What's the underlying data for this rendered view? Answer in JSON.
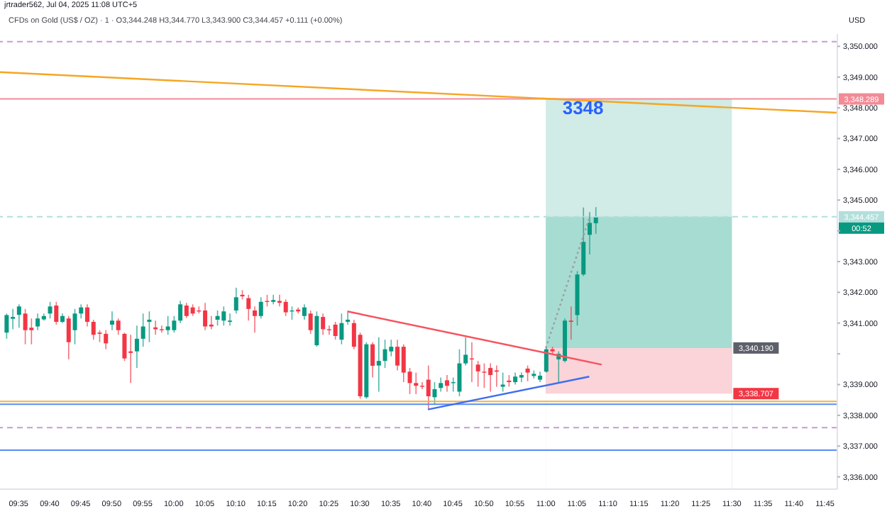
{
  "chart_data": {
    "type": "candlestick",
    "title": "jrtrader562, Jul 04, 2025 11:08 UTC+5",
    "subtitle": "CFDs on Gold (US$ / OZ) · 1 · O3,344.248 H3,344.770 L3,343.900 C3,344.457 +0.111 (+0.00%)",
    "ylabel": "USD",
    "x": [
      "2025-07-04T09:33",
      "2025-07-04T09:34",
      "2025-07-04T09:35",
      "2025-07-04T09:36",
      "2025-07-04T09:37",
      "2025-07-04T09:38",
      "2025-07-04T09:39",
      "2025-07-04T09:40",
      "2025-07-04T09:41",
      "2025-07-04T09:42",
      "2025-07-04T09:43",
      "2025-07-04T09:44",
      "2025-07-04T09:45",
      "2025-07-04T09:46",
      "2025-07-04T09:47",
      "2025-07-04T09:48",
      "2025-07-04T09:49",
      "2025-07-04T09:50",
      "2025-07-04T09:51",
      "2025-07-04T09:52",
      "2025-07-04T09:53",
      "2025-07-04T09:54",
      "2025-07-04T09:55",
      "2025-07-04T09:56",
      "2025-07-04T09:57",
      "2025-07-04T09:58",
      "2025-07-04T09:59",
      "2025-07-04T10:00",
      "2025-07-04T10:01",
      "2025-07-04T10:02",
      "2025-07-04T10:03",
      "2025-07-04T10:04",
      "2025-07-04T10:05",
      "2025-07-04T10:06",
      "2025-07-04T10:07",
      "2025-07-04T10:08",
      "2025-07-04T10:09",
      "2025-07-04T10:10",
      "2025-07-04T10:11",
      "2025-07-04T10:12",
      "2025-07-04T10:13",
      "2025-07-04T10:14",
      "2025-07-04T10:15",
      "2025-07-04T10:16",
      "2025-07-04T10:17",
      "2025-07-04T10:18",
      "2025-07-04T10:19",
      "2025-07-04T10:20",
      "2025-07-04T10:21",
      "2025-07-04T10:22",
      "2025-07-04T10:23",
      "2025-07-04T10:24",
      "2025-07-04T10:25",
      "2025-07-04T10:26",
      "2025-07-04T10:27",
      "2025-07-04T10:28",
      "2025-07-04T10:29",
      "2025-07-04T10:30",
      "2025-07-04T10:31",
      "2025-07-04T10:32",
      "2025-07-04T10:33",
      "2025-07-04T10:34",
      "2025-07-04T10:35",
      "2025-07-04T10:36",
      "2025-07-04T10:37",
      "2025-07-04T10:38",
      "2025-07-04T10:39",
      "2025-07-04T10:40",
      "2025-07-04T10:41",
      "2025-07-04T10:42",
      "2025-07-04T10:43",
      "2025-07-04T10:44",
      "2025-07-04T10:45",
      "2025-07-04T10:46",
      "2025-07-04T10:47",
      "2025-07-04T10:48",
      "2025-07-04T10:49",
      "2025-07-04T10:50",
      "2025-07-04T10:51",
      "2025-07-04T10:52",
      "2025-07-04T10:53",
      "2025-07-04T10:54",
      "2025-07-04T10:55",
      "2025-07-04T10:56",
      "2025-07-04T10:57",
      "2025-07-04T10:58",
      "2025-07-04T10:59",
      "2025-07-04T11:00",
      "2025-07-04T11:01",
      "2025-07-04T11:02",
      "2025-07-04T11:03",
      "2025-07-04T11:04",
      "2025-07-04T11:05",
      "2025-07-04T11:06",
      "2025-07-04T11:07",
      "2025-07-04T11:08"
    ],
    "ohlc": [
      [
        3340.69,
        3341.31,
        3340.49,
        3341.26
      ],
      [
        3341.14,
        3341.46,
        3340.8,
        3341.2
      ],
      [
        3341.27,
        3341.61,
        3340.85,
        3341.54
      ],
      [
        3341.31,
        3341.46,
        3340.31,
        3340.77
      ],
      [
        3340.85,
        3341.15,
        3340.31,
        3340.77
      ],
      [
        3340.89,
        3341.31,
        3340.77,
        3341.15
      ],
      [
        3341.12,
        3341.31,
        3341.08,
        3341.23
      ],
      [
        3341.31,
        3341.69,
        3341.15,
        3341.54
      ],
      [
        3341.57,
        3341.69,
        3340.95,
        3341.04
      ],
      [
        3341.04,
        3341.31,
        3341.0,
        3341.23
      ],
      [
        3341.15,
        3341.23,
        3339.82,
        3340.38
      ],
      [
        3340.77,
        3341.46,
        3340.31,
        3341.31
      ],
      [
        3341.31,
        3341.61,
        3341.15,
        3341.51
      ],
      [
        3341.51,
        3341.61,
        3340.89,
        3341.04
      ],
      [
        3341.04,
        3341.11,
        3340.46,
        3340.62
      ],
      [
        3340.69,
        3340.77,
        3340.38,
        3340.65
      ],
      [
        3340.65,
        3340.77,
        3340.15,
        3340.34
      ],
      [
        3340.95,
        3341.38,
        3340.77,
        3341.08
      ],
      [
        3341.08,
        3341.15,
        3340.62,
        3340.77
      ],
      [
        3340.65,
        3340.69,
        3339.77,
        3339.85
      ],
      [
        3340.08,
        3340.62,
        3339.05,
        3340.03
      ],
      [
        3340.08,
        3340.92,
        3339.54,
        3340.49
      ],
      [
        3340.49,
        3341.31,
        3340.23,
        3340.89
      ],
      [
        3341.04,
        3341.38,
        3340.38,
        3341.11
      ],
      [
        3340.86,
        3341.08,
        3340.62,
        3340.8
      ],
      [
        3340.8,
        3340.92,
        3340.69,
        3340.77
      ],
      [
        3340.77,
        3341.23,
        3340.62,
        3340.89
      ],
      [
        3340.77,
        3341.23,
        3340.69,
        3341.08
      ],
      [
        3341.08,
        3341.72,
        3341.0,
        3341.61
      ],
      [
        3341.57,
        3341.66,
        3341.17,
        3341.23
      ],
      [
        3341.51,
        3341.61,
        3341.23,
        3341.31
      ],
      [
        3341.41,
        3341.54,
        3341.31,
        3341.38
      ],
      [
        3341.41,
        3341.66,
        3340.77,
        3340.89
      ],
      [
        3340.95,
        3341.23,
        3340.8,
        3340.89
      ],
      [
        3341.11,
        3341.41,
        3340.92,
        3341.23
      ],
      [
        3341.08,
        3341.54,
        3340.92,
        3341.38
      ],
      [
        3341.04,
        3341.31,
        3340.92,
        3341.08
      ],
      [
        3341.41,
        3342.15,
        3341.31,
        3341.84
      ],
      [
        3341.92,
        3342.07,
        3341.77,
        3341.87
      ],
      [
        3341.81,
        3341.92,
        3341.08,
        3341.46
      ],
      [
        3341.41,
        3341.54,
        3340.69,
        3341.23
      ],
      [
        3341.23,
        3341.84,
        3341.15,
        3341.69
      ],
      [
        3341.72,
        3341.92,
        3341.54,
        3341.69
      ],
      [
        3341.69,
        3341.92,
        3341.61,
        3341.75
      ],
      [
        3341.72,
        3341.92,
        3341.54,
        3341.66
      ],
      [
        3341.69,
        3341.77,
        3341.23,
        3341.35
      ],
      [
        3341.38,
        3341.54,
        3341.11,
        3341.41
      ],
      [
        3341.44,
        3341.51,
        3341.31,
        3341.38
      ],
      [
        3341.23,
        3341.61,
        3341.11,
        3341.51
      ],
      [
        3341.31,
        3341.41,
        3340.65,
        3340.77
      ],
      [
        3340.28,
        3341.38,
        3340.23,
        3341.23
      ],
      [
        3341.2,
        3341.31,
        3340.62,
        3340.8
      ],
      [
        3340.8,
        3340.92,
        3340.62,
        3340.77
      ],
      [
        3340.95,
        3341.04,
        3340.46,
        3340.58
      ],
      [
        3340.46,
        3341.31,
        3340.31,
        3341.0
      ],
      [
        3341.04,
        3341.35,
        3340.95,
        3341.11
      ],
      [
        3341.0,
        3341.11,
        3340.15,
        3340.23
      ],
      [
        3340.62,
        3340.69,
        3338.54,
        3338.62
      ],
      [
        3338.59,
        3340.38,
        3338.54,
        3340.31
      ],
      [
        3340.31,
        3340.38,
        3339.23,
        3339.61
      ],
      [
        3339.62,
        3340.54,
        3338.77,
        3339.77
      ],
      [
        3339.77,
        3340.46,
        3339.54,
        3340.15
      ],
      [
        3340.08,
        3340.46,
        3339.92,
        3340.23
      ],
      [
        3340.23,
        3340.46,
        3339.46,
        3339.62
      ],
      [
        3340.23,
        3340.31,
        3339.08,
        3339.39
      ],
      [
        3339.42,
        3339.54,
        3338.69,
        3339.05
      ],
      [
        3339.05,
        3339.39,
        3338.69,
        3338.96
      ],
      [
        3338.96,
        3339.08,
        3338.85,
        3338.93
      ],
      [
        3339.16,
        3339.62,
        3338.19,
        3338.62
      ],
      [
        3338.59,
        3339.08,
        3338.34,
        3338.85
      ],
      [
        3338.89,
        3339.23,
        3338.77,
        3339.05
      ],
      [
        3339.14,
        3339.31,
        3338.77,
        3338.96
      ],
      [
        3339.05,
        3339.23,
        3338.77,
        3339.08
      ],
      [
        3338.77,
        3340.15,
        3338.62,
        3339.69
      ],
      [
        3339.69,
        3340.54,
        3339.62,
        3339.97
      ],
      [
        3339.85,
        3340.38,
        3339.08,
        3339.82
      ],
      [
        3339.65,
        3339.77,
        3338.93,
        3339.43
      ],
      [
        3339.42,
        3339.69,
        3338.89,
        3339.39
      ],
      [
        3339.54,
        3339.69,
        3338.77,
        3339.31
      ],
      [
        3339.46,
        3339.62,
        3338.93,
        3339.42
      ],
      [
        3338.93,
        3339.39,
        3338.77,
        3339.0
      ],
      [
        3339.13,
        3339.31,
        3338.93,
        3339.08
      ],
      [
        3339.08,
        3339.39,
        3339.0,
        3339.26
      ],
      [
        3339.23,
        3339.39,
        3339.08,
        3339.31
      ],
      [
        3339.52,
        3339.62,
        3339.11,
        3339.39
      ],
      [
        3339.28,
        3339.46,
        3339.2,
        3339.35
      ],
      [
        3339.16,
        3339.42,
        3339.08,
        3339.29
      ],
      [
        3339.42,
        3340.23,
        3339.39,
        3340.15
      ],
      [
        3340.15,
        3340.23,
        3340.0,
        3340.08
      ],
      [
        3339.82,
        3340.08,
        3339.08,
        3340.0
      ],
      [
        3339.77,
        3341.15,
        3339.72,
        3341.08
      ],
      [
        3341.08,
        3341.54,
        3340.46,
        3341.04
      ],
      [
        3341.26,
        3342.69,
        3340.92,
        3342.58
      ],
      [
        3342.58,
        3344.76,
        3342.53,
        3343.64
      ],
      [
        3343.87,
        3344.61,
        3343.23,
        3344.26
      ],
      [
        3344.248,
        3344.77,
        3343.9,
        3344.457
      ]
    ],
    "series": [
      {
        "type": "area",
        "x": [
          "2025-07-04T11:00",
          "2025-07-04T11:30"
        ],
        "values": [
          3348.289,
          3348.289
        ],
        "color": "#d1ebe6"
      },
      {
        "type": "area",
        "x": [
          "2025-07-04T11:00",
          "2025-07-04T11:30"
        ],
        "values": [
          3344.457,
          3344.457
        ],
        "color": "#a7dcd2"
      },
      {
        "type": "area",
        "x": [
          "2025-07-04T11:00",
          "2025-07-04T11:30"
        ],
        "values": [
          3340.19,
          3340.19
        ],
        "value_labels": [
          null,
          "3,340.190"
        ],
        "color": "#fad4d8"
      },
      {
        "type": "area",
        "x": [
          "2025-07-04T11:00",
          "2025-07-04T11:30"
        ],
        "values": [
          3338.707,
          3338.707
        ],
        "value_labels": [
          null,
          "3,338.707"
        ],
        "color": "#ffffff"
      },
      {
        "type": "line",
        "x": [
          "2025-07-04T09:32",
          "2025-07-04T11:47"
        ],
        "values": [
          3349.16,
          3347.84
        ],
        "color": "#f5a623",
        "line_style": "solid"
      },
      {
        "type": "line",
        "x": [
          "2025-07-04T10:28",
          "2025-07-04T11:09"
        ],
        "values": [
          3341.38,
          3339.65
        ],
        "color": "#f7525f",
        "line_style": "solid"
      },
      {
        "type": "line",
        "x": [
          "2025-07-04T10:41",
          "2025-07-04T11:07"
        ],
        "values": [
          3338.19,
          3339.26
        ],
        "color": "#3d6ef0",
        "line_style": "solid"
      },
      {
        "type": "line",
        "x": [
          "2025-07-04T11:00",
          "2025-07-04T11:07"
        ],
        "values": [
          3340.19,
          3344.4
        ],
        "color": "#9e9e9e",
        "line_style": "dotted"
      }
    ],
    "ref_lines": [
      {
        "axis": "y",
        "value": 3350.15,
        "color": "#c79bd8",
        "line_style": "dashed"
      },
      {
        "axis": "y",
        "value": 3348.289,
        "label": "3,348.289",
        "color": "#f28b96",
        "line_style": "solid"
      },
      {
        "axis": "y",
        "value": 3344.457,
        "label": "3,344.457",
        "color": "#b2dfdb",
        "line_style": "dashed"
      },
      {
        "axis": "y",
        "value": 3338.45,
        "color": "#f5b041",
        "line_style": "solid"
      },
      {
        "axis": "y",
        "value": 3338.36,
        "color": "#5b8cf5",
        "line_style": "solid"
      },
      {
        "axis": "y",
        "value": 3337.6,
        "color": "#c79bd8",
        "line_style": "dashed"
      },
      {
        "axis": "y",
        "value": 3336.87,
        "color": "#5b8cf5",
        "line_style": "solid"
      }
    ],
    "annotations": [
      {
        "text": "3348",
        "x": "2025-07-04T11:06",
        "y": 3348.0
      },
      "00:52"
    ],
    "xlim": [
      "2025-07-04T09:32",
      "2025-07-04T11:47"
    ],
    "xticks": [
      {
        "value": "2025-07-04T09:35",
        "label": "09:35"
      },
      {
        "value": "2025-07-04T09:40",
        "label": "09:40"
      },
      {
        "value": "2025-07-04T09:45",
        "label": "09:45"
      },
      {
        "value": "2025-07-04T09:50",
        "label": "09:50"
      },
      {
        "value": "2025-07-04T09:55",
        "label": "09:55"
      },
      {
        "value": "2025-07-04T10:00",
        "label": "10:00"
      },
      {
        "value": "2025-07-04T10:05",
        "label": "10:05"
      },
      {
        "value": "2025-07-04T10:10",
        "label": "10:10"
      },
      {
        "value": "2025-07-04T10:15",
        "label": "10:15"
      },
      {
        "value": "2025-07-04T10:20",
        "label": "10:20"
      },
      {
        "value": "2025-07-04T10:25",
        "label": "10:25"
      },
      {
        "value": "2025-07-04T10:30",
        "label": "10:30"
      },
      {
        "value": "2025-07-04T10:35",
        "label": "10:35"
      },
      {
        "value": "2025-07-04T10:40",
        "label": "10:40"
      },
      {
        "value": "2025-07-04T10:45",
        "label": "10:45"
      },
      {
        "value": "2025-07-04T10:50",
        "label": "10:50"
      },
      {
        "value": "2025-07-04T10:55",
        "label": "10:55"
      },
      {
        "value": "2025-07-04T11:00",
        "label": "11:00"
      },
      {
        "value": "2025-07-04T11:05",
        "label": "11:05"
      },
      {
        "value": "2025-07-04T11:10",
        "label": "11:10"
      },
      {
        "value": "2025-07-04T11:15",
        "label": "11:15"
      },
      {
        "value": "2025-07-04T11:20",
        "label": "11:20"
      },
      {
        "value": "2025-07-04T11:25",
        "label": "11:25"
      },
      {
        "value": "2025-07-04T11:30",
        "label": "11:30"
      },
      {
        "value": "2025-07-04T11:35",
        "label": "11:35"
      },
      {
        "value": "2025-07-04T11:40",
        "label": "11:40"
      },
      {
        "value": "2025-07-04T11:45",
        "label": "11:45"
      }
    ],
    "ylim": [
      3335.6,
      3350.4
    ],
    "yticks": [
      {
        "value": 3336,
        "label": "3,336.000"
      },
      {
        "value": 3337,
        "label": "3,337.000"
      },
      {
        "value": 3338,
        "label": "3,338.000"
      },
      {
        "value": 3339,
        "label": "3,339.000"
      },
      {
        "value": 3340,
        "label": null
      },
      {
        "value": 3341,
        "label": "3,341.000"
      },
      {
        "value": 3342,
        "label": "3,342.000"
      },
      {
        "value": 3343,
        "label": "3,343.000"
      },
      {
        "value": 3344,
        "label": null
      },
      {
        "value": 3345,
        "label": "3,345.000"
      },
      {
        "value": 3346,
        "label": "3,346.000"
      },
      {
        "value": 3347,
        "label": "3,347.000"
      },
      {
        "value": 3348,
        "label": "3,348.000"
      },
      {
        "value": 3349,
        "label": "3,349.000"
      },
      {
        "value": 3350,
        "label": "3,350.000"
      }
    ],
    "grid": false
  }
}
